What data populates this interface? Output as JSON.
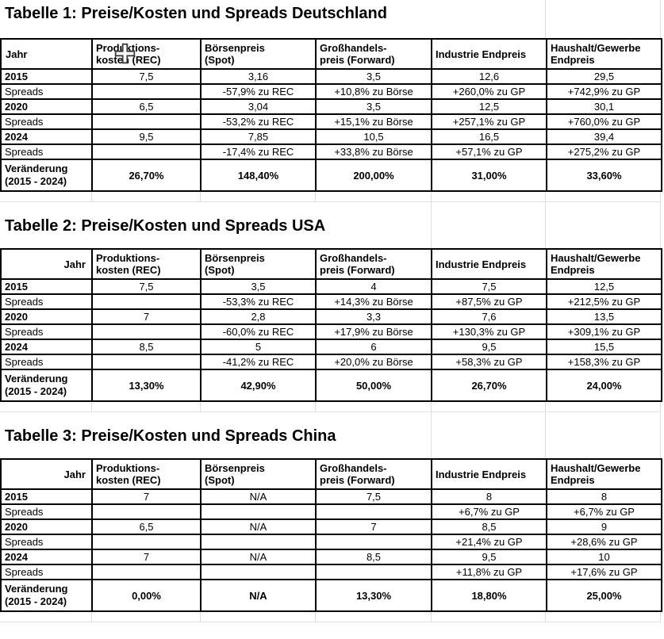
{
  "colors": {
    "table_border": "#000000",
    "gridline_gray": "#dcdcdc",
    "indicator_green": "#1f9d3f",
    "cursor_fill": "#ffffff",
    "cursor_outline": "#3c3c3c"
  },
  "icons": {
    "cell_cursor": "excel-plus-cell-cursor",
    "error_indicator": "green-corner-triangle"
  },
  "tables": [
    {
      "title": "Tabelle 1: Preise/Kosten und Spreads Deutschland",
      "jahr_header": "Jahr",
      "jahr_align": "left",
      "columns": [
        {
          "lines": [
            "Produktions-",
            "kosten (REC)"
          ]
        },
        {
          "lines": [
            "Börsenpreis",
            "(Spot)"
          ]
        },
        {
          "lines": [
            "Großhandels-",
            "preis (Forward)"
          ]
        },
        {
          "lines": [
            "Industrie Endpreis"
          ]
        },
        {
          "lines": [
            "Haushalt/Gewerbe",
            "Endpreis"
          ]
        }
      ],
      "rows": [
        {
          "kind": "year",
          "label": "2015",
          "cells": [
            "7,5",
            "3,16",
            "3,5",
            "12,6",
            "29,5"
          ]
        },
        {
          "kind": "spread",
          "label": "Spreads",
          "cells": [
            "",
            "-57,9% zu REC",
            "+10,8% zu Börse",
            "+260,0% zu GP",
            "+742,9% zu GP"
          ]
        },
        {
          "kind": "year",
          "label": "2020",
          "indicator": true,
          "cells": [
            "6,5",
            "3,04",
            "3,5",
            "12,5",
            "30,1"
          ]
        },
        {
          "kind": "spread",
          "label": "Spreads",
          "cells": [
            "",
            "-53,2% zu REC",
            "+15,1% zu Börse",
            "+257,1% zu GP",
            "+760,0% zu GP"
          ]
        },
        {
          "kind": "year",
          "label": "2024",
          "cells": [
            "9,5",
            "7,85",
            "10,5",
            "16,5",
            "39,4"
          ]
        },
        {
          "kind": "spread",
          "label": "Spreads",
          "cells": [
            "",
            "-17,4% zu REC",
            "+33,8% zu Börse",
            "+57,1% zu GP",
            "+275,2% zu GP"
          ]
        },
        {
          "kind": "change",
          "label_lines": [
            "Veränderung",
            "(2015 - 2024)"
          ],
          "cells": [
            "26,70%",
            "148,40%",
            "200,00%",
            "31,00%",
            "33,60%"
          ]
        }
      ]
    },
    {
      "title": "Tabelle 2: Preise/Kosten und Spreads USA",
      "jahr_header": "Jahr",
      "jahr_align": "right",
      "columns": [
        {
          "lines": [
            "Produktions-",
            "kosten (REC)"
          ]
        },
        {
          "lines": [
            "Börsenpreis",
            "(Spot)"
          ]
        },
        {
          "lines": [
            "Großhandels-",
            "preis (Forward)"
          ]
        },
        {
          "lines": [
            "Industrie Endpreis"
          ]
        },
        {
          "lines": [
            "Haushalt/Gewerbe",
            "Endpreis"
          ]
        }
      ],
      "rows": [
        {
          "kind": "year",
          "label": "2015",
          "cells": [
            "7,5",
            "3,5",
            "4",
            "7,5",
            "12,5"
          ]
        },
        {
          "kind": "spread",
          "label": "Spreads",
          "cells": [
            "",
            "-53,3% zu REC",
            "+14,3% zu Börse",
            "+87,5% zu GP",
            "+212,5% zu GP"
          ]
        },
        {
          "kind": "year",
          "label": "2020",
          "indicator": true,
          "cells": [
            "7",
            "2,8",
            "3,3",
            "7,6",
            "13,5"
          ]
        },
        {
          "kind": "spread",
          "label": "Spreads",
          "cells": [
            "",
            "-60,0% zu REC",
            "+17,9% zu Börse",
            "+130,3% zu GP",
            "+309,1% zu GP"
          ]
        },
        {
          "kind": "year",
          "label": "2024",
          "cells": [
            "8,5",
            "5",
            "6",
            "9,5",
            "15,5"
          ]
        },
        {
          "kind": "spread",
          "label": "Spreads",
          "cells": [
            "",
            "-41,2% zu REC",
            "+20,0% zu Börse",
            "+58,3% zu GP",
            "+158,3% zu GP"
          ]
        },
        {
          "kind": "change",
          "label_lines": [
            "Veränderung",
            "(2015 - 2024)"
          ],
          "cells": [
            "13,30%",
            "42,90%",
            "50,00%",
            "26,70%",
            "24,00%"
          ]
        }
      ]
    },
    {
      "title": "Tabelle 3: Preise/Kosten und Spreads China",
      "jahr_header": "Jahr",
      "jahr_align": "right",
      "columns": [
        {
          "lines": [
            "Produktions-",
            "kosten (REC)"
          ]
        },
        {
          "lines": [
            "Börsenpreis",
            "(Spot)"
          ]
        },
        {
          "lines": [
            "Großhandels-",
            "preis (Forward)"
          ]
        },
        {
          "lines": [
            "Industrie Endpreis"
          ]
        },
        {
          "lines": [
            "Haushalt/Gewerbe",
            "Endpreis"
          ]
        }
      ],
      "rows": [
        {
          "kind": "year",
          "label": "2015",
          "cells": [
            "7",
            "N/A",
            "7,5",
            "8",
            "8"
          ]
        },
        {
          "kind": "spread",
          "label": "Spreads",
          "cells": [
            "",
            "",
            "",
            "+6,7% zu GP",
            "+6,7% zu GP"
          ]
        },
        {
          "kind": "year",
          "label": "2020",
          "indicator": true,
          "cells": [
            "6,5",
            "N/A",
            "7",
            "8,5",
            "9"
          ]
        },
        {
          "kind": "spread",
          "label": "Spreads",
          "cells": [
            "",
            "",
            "",
            "+21,4% zu GP",
            "+28,6% zu GP"
          ]
        },
        {
          "kind": "year",
          "label": "2024",
          "cells": [
            "7",
            "N/A",
            "8,5",
            "9,5",
            "10"
          ]
        },
        {
          "kind": "spread",
          "label": "Spreads",
          "cells": [
            "",
            "",
            "",
            "+11,8% zu GP",
            "+17,6% zu GP"
          ]
        },
        {
          "kind": "change",
          "label_lines": [
            "Veränderung",
            "(2015 - 2024)"
          ],
          "cells": [
            "0,00%",
            "N/A",
            "13,30%",
            "18,80%",
            "25,00%"
          ]
        }
      ]
    }
  ]
}
